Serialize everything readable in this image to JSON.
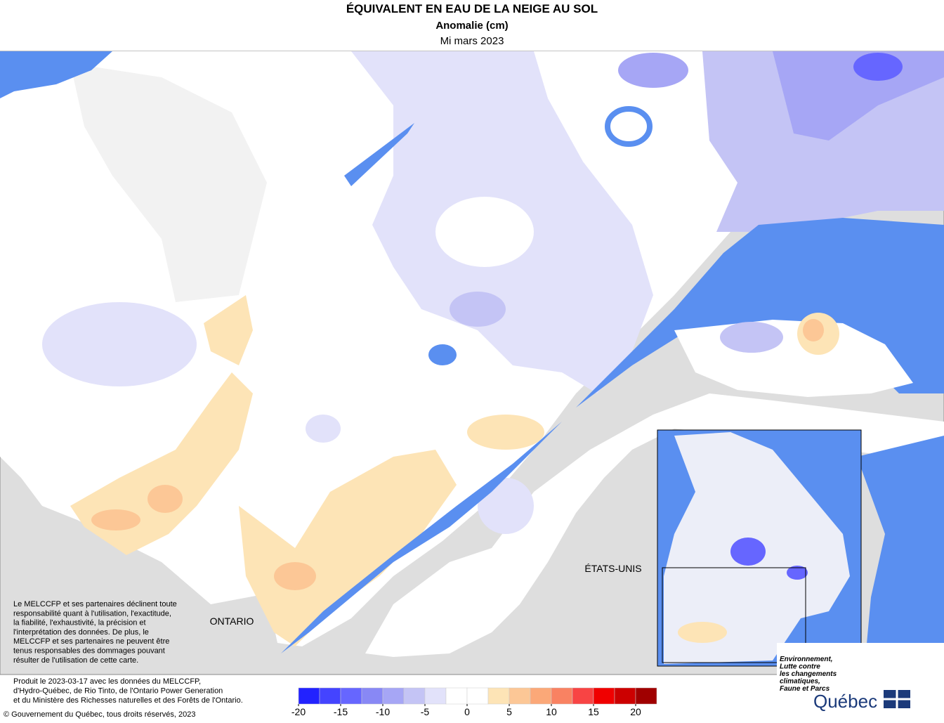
{
  "header": {
    "title": "ÉQUIVALENT EN EAU DE LA NEIGE AU SOL",
    "subtitle": "Anomalie (cm)",
    "date": "Mi mars 2023"
  },
  "map": {
    "labels": [
      "ONTARIO",
      "ÉTATS-UNIS"
    ]
  },
  "disclaimer": [
    "Le MELCCFP et ses partenaires déclinent toute",
    "responsabilité quant à l'utilisation, l'exactitude,",
    "la fiabilité, l'exhaustivité, la précision et",
    "l'interprétation des données. De plus, le",
    "MELCCFP et ses partenaires ne peuvent être",
    "tenus responsables des dommages pouvant",
    "résulter de l'utilisation de cette carte."
  ],
  "footer": {
    "production": [
      "Produit le 2023-03-17 avec les données du MELCCFP,",
      "d'Hydro-Québec, de Rio Tinto, de l'Ontario Power Generation",
      "et du Ministère des Richesses naturelles et des Forêts de l'Ontario."
    ],
    "copyright": "© Gouvernement du Québec, tous droits réservés, 2023"
  },
  "colorbar": {
    "lim": [
      -20,
      22.5
    ],
    "ticks": [
      -20,
      -15,
      -10,
      -5,
      0,
      5,
      10,
      15,
      20
    ],
    "colors": [
      "#2222ff",
      "#4444ff",
      "#6666ff",
      "#8888f5",
      "#a6a6f5",
      "#c4c4f5",
      "#e2e2fa",
      "#ffffff",
      "#ffffff",
      "#fde4b6",
      "#fcc796",
      "#fba878",
      "#f98262",
      "#f84444",
      "#f00000",
      "#cc0000",
      "#a00000"
    ]
  },
  "logo": {
    "ministry": [
      "Environnement,",
      "Lutte contre",
      "les changements",
      "climatiques,",
      "Faune et Parcs"
    ],
    "name": "Québec"
  }
}
